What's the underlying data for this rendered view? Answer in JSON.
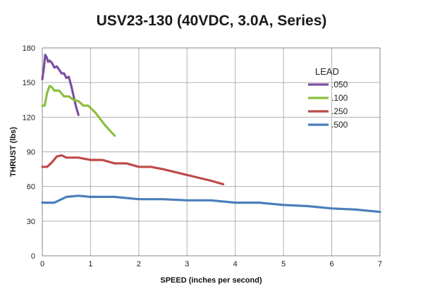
{
  "chart_data": {
    "type": "line",
    "title": "USV23-130 (40VDC, 3.0A, Series)",
    "xlabel": "SPEED (inches per second)",
    "ylabel": "THRUST (lbs)",
    "xlim": [
      0,
      7
    ],
    "ylim": [
      0,
      180
    ],
    "x_ticks": [
      0,
      1,
      2,
      3,
      4,
      5,
      6,
      7
    ],
    "y_ticks": [
      0,
      30,
      60,
      90,
      120,
      150,
      180
    ],
    "grid": true,
    "legend": {
      "title": "LEAD",
      "placement": "right"
    },
    "series": [
      {
        "name": ".050",
        "color": "#7d4fa0",
        "points": [
          [
            0,
            153
          ],
          [
            0.03,
            162
          ],
          [
            0.06,
            174
          ],
          [
            0.09,
            172
          ],
          [
            0.12,
            168
          ],
          [
            0.15,
            169
          ],
          [
            0.2,
            167
          ],
          [
            0.25,
            163
          ],
          [
            0.3,
            164
          ],
          [
            0.35,
            161
          ],
          [
            0.4,
            158
          ],
          [
            0.45,
            158
          ],
          [
            0.5,
            154
          ],
          [
            0.55,
            155
          ],
          [
            0.6,
            147
          ],
          [
            0.65,
            138
          ],
          [
            0.7,
            129
          ],
          [
            0.75,
            122
          ]
        ]
      },
      {
        "name": ".100",
        "color": "#8cbf3f",
        "points": [
          [
            0,
            130
          ],
          [
            0.05,
            130
          ],
          [
            0.1,
            141
          ],
          [
            0.15,
            147
          ],
          [
            0.2,
            146
          ],
          [
            0.25,
            143
          ],
          [
            0.35,
            143
          ],
          [
            0.45,
            138
          ],
          [
            0.55,
            138
          ],
          [
            0.65,
            135
          ],
          [
            0.75,
            134
          ],
          [
            0.85,
            130
          ],
          [
            0.95,
            130
          ],
          [
            1.1,
            124
          ],
          [
            1.3,
            113
          ],
          [
            1.5,
            104
          ]
        ]
      },
      {
        "name": ".250",
        "color": "#be4b48",
        "points": [
          [
            0,
            77
          ],
          [
            0.1,
            77
          ],
          [
            0.2,
            81
          ],
          [
            0.3,
            86
          ],
          [
            0.4,
            87
          ],
          [
            0.5,
            85
          ],
          [
            0.75,
            85
          ],
          [
            1.0,
            83
          ],
          [
            1.25,
            83
          ],
          [
            1.5,
            80
          ],
          [
            1.75,
            80
          ],
          [
            2.0,
            77
          ],
          [
            2.25,
            77
          ],
          [
            2.5,
            75
          ],
          [
            3.0,
            70
          ],
          [
            3.5,
            65
          ],
          [
            3.75,
            62
          ]
        ]
      },
      {
        "name": ".500",
        "color": "#4a7ebb",
        "points": [
          [
            0,
            46
          ],
          [
            0.25,
            46
          ],
          [
            0.5,
            51
          ],
          [
            0.75,
            52
          ],
          [
            1.0,
            51
          ],
          [
            1.5,
            51
          ],
          [
            2.0,
            49
          ],
          [
            2.5,
            49
          ],
          [
            3.0,
            48
          ],
          [
            3.5,
            48
          ],
          [
            4.0,
            46
          ],
          [
            4.5,
            46
          ],
          [
            5.0,
            44
          ],
          [
            5.5,
            43
          ],
          [
            6.0,
            41
          ],
          [
            6.5,
            40
          ],
          [
            7.0,
            38
          ]
        ]
      }
    ]
  }
}
